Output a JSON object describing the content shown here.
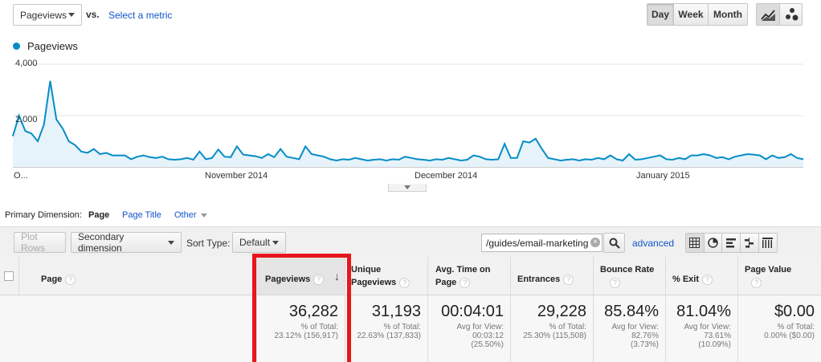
{
  "toolbar": {
    "metric_select": "Pageviews",
    "vs_label": "vs.",
    "select_metric_link": "Select a metric",
    "period_day": "Day",
    "period_week": "Week",
    "period_month": "Month"
  },
  "chart_data": {
    "type": "area",
    "series": [
      {
        "name": "Pageviews",
        "values": [
          1200,
          2000,
          1400,
          1300,
          1000,
          1650,
          3350,
          1850,
          1500,
          1000,
          850,
          600,
          550,
          700,
          500,
          550,
          450,
          450,
          450,
          300,
          400,
          450,
          380,
          350,
          400,
          300,
          280,
          300,
          350,
          280,
          600,
          300,
          350,
          680,
          400,
          380,
          800,
          480,
          450,
          420,
          350,
          500,
          380,
          700,
          400,
          350,
          300,
          800,
          500,
          450,
          400,
          300,
          250,
          300,
          280,
          350,
          300,
          250,
          280,
          300,
          250,
          300,
          280,
          400,
          350,
          300,
          280,
          250,
          300,
          280,
          350,
          300,
          250,
          280,
          450,
          400,
          300,
          280,
          300,
          900,
          350,
          350,
          1000,
          950,
          1100,
          700,
          350,
          300,
          250,
          280,
          300,
          250,
          300,
          280,
          350,
          300,
          450,
          300,
          250,
          500,
          280,
          300,
          350,
          400,
          450,
          300,
          280,
          350,
          300,
          450,
          450,
          500,
          450,
          350,
          380,
          300,
          400,
          450,
          500,
          480,
          450,
          300,
          450,
          350,
          380,
          500,
          350,
          300
        ]
      }
    ],
    "x_labels": [
      "O...",
      "November 2014",
      "December 2014",
      "January 2015"
    ],
    "y_ticks": [
      "4,000",
      "2,000"
    ],
    "ylim": [
      0,
      4000
    ],
    "legend_position": "top-left",
    "color": "#058dc7"
  },
  "dimension": {
    "label": "Primary Dimension:",
    "current": "Page",
    "option_title": "Page Title",
    "option_other": "Other"
  },
  "controls": {
    "plot_rows": "Plot Rows",
    "secondary_dimension": "Secondary dimension",
    "sort_type_label": "Sort Type:",
    "sort_type_value": "Default",
    "filter_value": "/guides/email-marketing",
    "advanced_link": "advanced"
  },
  "table": {
    "headers": {
      "page": "Page",
      "pageviews": "Pageviews",
      "unique": "Unique Pageviews",
      "avg_time": "Avg. Time on Page",
      "entrances": "Entrances",
      "bounce": "Bounce Rate",
      "exit": "% Exit",
      "value": "Page Value"
    },
    "totals": {
      "pageviews": "36,282",
      "pageviews_sub1": "% of Total:",
      "pageviews_sub2": "23.12% (156,917)",
      "unique": "31,193",
      "unique_sub1": "% of Total:",
      "unique_sub2": "22.63% (137,833)",
      "avg_time": "00:04:01",
      "avg_time_sub1": "Avg for View:",
      "avg_time_sub2": "00:03:12",
      "avg_time_sub3": "(25.50%)",
      "entrances": "29,228",
      "entrances_sub1": "% of Total:",
      "entrances_sub2": "25.30% (115,508)",
      "bounce": "85.84%",
      "bounce_sub1": "Avg for View:",
      "bounce_sub2": "82.76%",
      "bounce_sub3": "(3.73%)",
      "exit": "81.04%",
      "exit_sub1": "Avg for View:",
      "exit_sub2": "73.61%",
      "exit_sub3": "(10.09%)",
      "value": "$0.00",
      "value_sub1": "% of Total:",
      "value_sub2": "0.00% ($0.00)"
    }
  },
  "help_glyph": "?"
}
